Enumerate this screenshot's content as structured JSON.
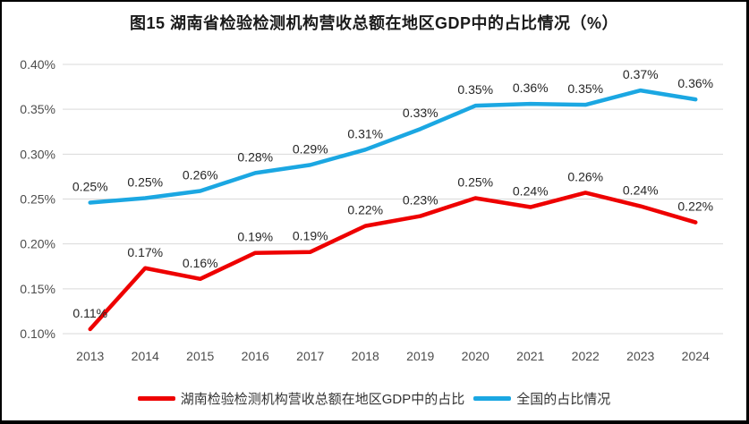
{
  "chart_data": {
    "type": "line",
    "title": "图15 湖南省检验检测机构营收总额在地区GDP中的占比情况（%）",
    "categories": [
      "2013",
      "2014",
      "2015",
      "2016",
      "2017",
      "2018",
      "2019",
      "2020",
      "2021",
      "2022",
      "2023",
      "2024"
    ],
    "series": [
      {
        "key": "hunan",
        "name": "湖南检验检测机构营收总额在地区GDP中的占比",
        "color": "#ee0000",
        "values": [
          0.11,
          0.17,
          0.16,
          0.19,
          0.19,
          0.22,
          0.23,
          0.25,
          0.24,
          0.26,
          0.24,
          0.22
        ],
        "labels": [
          "0.11%",
          "0.17%",
          "0.16%",
          "0.19%",
          "0.19%",
          "0.22%",
          "0.23%",
          "0.25%",
          "0.24%",
          "0.26%",
          "0.24%",
          "0.22%"
        ],
        "plot_values": [
          0.105,
          0.173,
          0.161,
          0.19,
          0.191,
          0.22,
          0.231,
          0.251,
          0.241,
          0.257,
          0.242,
          0.224
        ]
      },
      {
        "key": "national",
        "name": "全国的占比情况",
        "color": "#1ba7e2",
        "values": [
          0.25,
          0.25,
          0.26,
          0.28,
          0.29,
          0.31,
          0.33,
          0.35,
          0.36,
          0.35,
          0.37,
          0.36
        ],
        "labels": [
          "0.25%",
          "0.25%",
          "0.26%",
          "0.28%",
          "0.29%",
          "0.31%",
          "0.33%",
          "0.35%",
          "0.36%",
          "0.35%",
          "0.37%",
          "0.36%"
        ],
        "plot_values": [
          0.246,
          0.251,
          0.259,
          0.279,
          0.288,
          0.305,
          0.328,
          0.354,
          0.356,
          0.355,
          0.371,
          0.361
        ]
      }
    ],
    "y_axis": {
      "min": 0.1,
      "max": 0.4,
      "step": 0.05,
      "tick_labels": [
        "0.10%",
        "0.15%",
        "0.20%",
        "0.25%",
        "0.30%",
        "0.35%",
        "0.40%"
      ]
    },
    "x_axis": {
      "tick_labels": [
        "2013",
        "2014",
        "2015",
        "2016",
        "2017",
        "2018",
        "2019",
        "2020",
        "2021",
        "2022",
        "2023",
        "2024"
      ]
    },
    "grid": true,
    "grid_color": "#d9d9d9",
    "tick_label_color": "#4d4d4d",
    "data_label_color": "#262626",
    "legend_position": "bottom",
    "border_color": "#000000",
    "background_color": "#ffffff"
  }
}
